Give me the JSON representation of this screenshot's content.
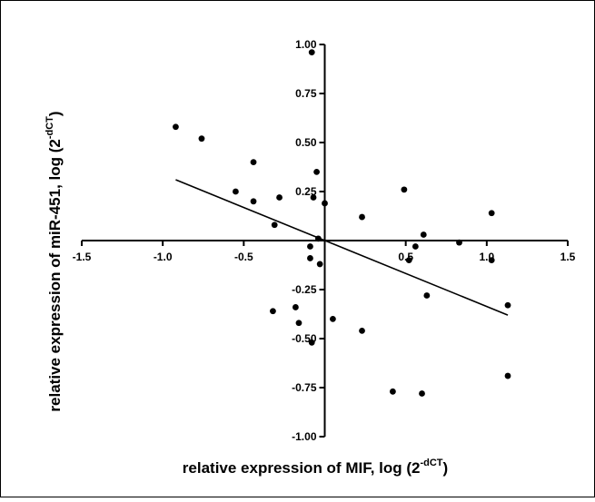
{
  "chart_data": {
    "type": "scatter",
    "xlabel_main": "relative expression of MIF, log (2",
    "xlabel_sup": "-dCT",
    "xlabel_end": ")",
    "ylabel_main": "relative expression of miR-451, log (2",
    "ylabel_sup": "-dCT",
    "ylabel_end": ")",
    "xlim": [
      -1.5,
      1.5
    ],
    "ylim": [
      -1.0,
      1.0
    ],
    "x_ticks": [
      -1.5,
      -1.0,
      -0.5,
      0.5,
      1.0,
      1.5
    ],
    "x_tick_labels": [
      "-1.5",
      "-1.0",
      "-0.5",
      "0.5",
      "1.0",
      "1.5"
    ],
    "y_ticks": [
      1.0,
      0.75,
      0.5,
      0.25,
      -0.25,
      -0.5,
      -0.75,
      -1.0
    ],
    "y_tick_labels": [
      "1.00",
      "0.75",
      "0.50",
      "0.25",
      "-0.25",
      "-0.50",
      "-0.75",
      "-1.00"
    ],
    "points": [
      {
        "x": -0.92,
        "y": 0.58
      },
      {
        "x": -0.76,
        "y": 0.52
      },
      {
        "x": -0.44,
        "y": 0.4
      },
      {
        "x": -0.55,
        "y": 0.25
      },
      {
        "x": -0.44,
        "y": 0.2
      },
      {
        "x": -0.28,
        "y": 0.22
      },
      {
        "x": -0.31,
        "y": 0.08
      },
      {
        "x": -0.08,
        "y": 0.96
      },
      {
        "x": -0.05,
        "y": 0.35
      },
      {
        "x": -0.07,
        "y": 0.22
      },
      {
        "x": 0.0,
        "y": 0.19
      },
      {
        "x": -0.04,
        "y": 0.01
      },
      {
        "x": -0.09,
        "y": -0.03
      },
      {
        "x": -0.09,
        "y": -0.09
      },
      {
        "x": -0.03,
        "y": -0.12
      },
      {
        "x": 0.23,
        "y": 0.12
      },
      {
        "x": 0.49,
        "y": 0.26
      },
      {
        "x": 0.61,
        "y": 0.03
      },
      {
        "x": 0.56,
        "y": -0.03
      },
      {
        "x": 0.52,
        "y": -0.1
      },
      {
        "x": 0.63,
        "y": -0.28
      },
      {
        "x": 0.83,
        "y": -0.01
      },
      {
        "x": 1.03,
        "y": 0.14
      },
      {
        "x": 1.03,
        "y": -0.1
      },
      {
        "x": 1.13,
        "y": -0.33
      },
      {
        "x": 1.13,
        "y": -0.69
      },
      {
        "x": -0.32,
        "y": -0.36
      },
      {
        "x": -0.18,
        "y": -0.34
      },
      {
        "x": -0.16,
        "y": -0.42
      },
      {
        "x": -0.08,
        "y": -0.52
      },
      {
        "x": 0.05,
        "y": -0.4
      },
      {
        "x": 0.23,
        "y": -0.46
      },
      {
        "x": 0.42,
        "y": -0.77
      },
      {
        "x": 0.6,
        "y": -0.78
      }
    ],
    "regression_line": {
      "x": [
        -0.92,
        1.13
      ],
      "y": [
        0.31,
        -0.38
      ]
    }
  }
}
